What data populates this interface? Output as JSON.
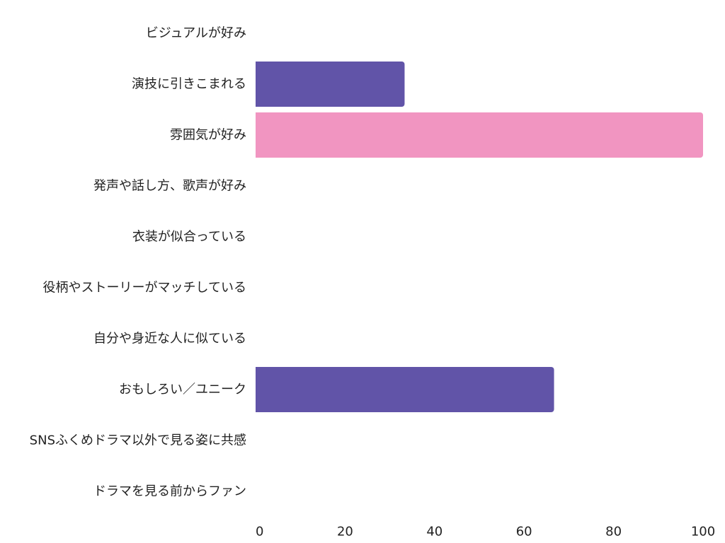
{
  "chart_data": {
    "type": "bar",
    "orientation": "horizontal",
    "categories": [
      "ビジュアルが好み",
      "演技に引きこまれる",
      "雰囲気が好み",
      "発声や話し方、歌声が好み",
      "衣装が似合っている",
      "役柄やストーリーがマッチしている",
      "自分や身近な人に似ている",
      "おもしろい／ユニーク",
      "SNSふくめドラマ以外で見る姿に共感",
      "ドラマを見る前からファン"
    ],
    "values": [
      0,
      33.3,
      100,
      0,
      0,
      0,
      0,
      66.7,
      0,
      0
    ],
    "bar_colors": [
      "#6154a8",
      "#6154a8",
      "#f195c1",
      "#6154a8",
      "#6154a8",
      "#6154a8",
      "#6154a8",
      "#6154a8",
      "#6154a8",
      "#6154a8"
    ],
    "xlim": [
      0,
      100
    ],
    "xticks": [
      "0",
      "20",
      "40",
      "60",
      "80",
      "100"
    ],
    "xtick_values": [
      0,
      20,
      40,
      60,
      80,
      100
    ],
    "grid": false,
    "legend": "none"
  }
}
